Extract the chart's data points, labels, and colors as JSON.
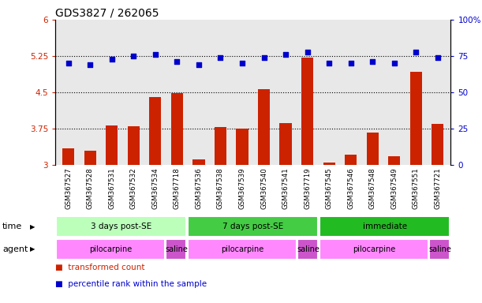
{
  "title": "GDS3827 / 262065",
  "samples": [
    "GSM367527",
    "GSM367528",
    "GSM367531",
    "GSM367532",
    "GSM367534",
    "GSM367718",
    "GSM367536",
    "GSM367538",
    "GSM367539",
    "GSM367540",
    "GSM367541",
    "GSM367719",
    "GSM367545",
    "GSM367546",
    "GSM367548",
    "GSM367549",
    "GSM367551",
    "GSM367721"
  ],
  "bar_values": [
    3.35,
    3.3,
    3.82,
    3.8,
    4.4,
    4.48,
    3.12,
    3.78,
    3.76,
    4.57,
    3.87,
    5.22,
    3.05,
    3.22,
    3.68,
    3.18,
    4.92,
    3.85
  ],
  "dot_values": [
    70,
    69,
    73,
    75,
    76,
    71,
    69,
    74,
    70,
    74,
    76,
    78,
    70,
    70,
    71,
    70,
    78,
    74
  ],
  "ylim_left": [
    3.0,
    6.0
  ],
  "ylim_right": [
    0,
    100
  ],
  "yticks_left": [
    3.0,
    3.75,
    4.5,
    5.25,
    6.0
  ],
  "ytick_labels_left": [
    "3",
    "3.75",
    "4.5",
    "5.25",
    "6"
  ],
  "yticks_right": [
    0,
    25,
    50,
    75,
    100
  ],
  "ytick_labels_right": [
    "0",
    "25",
    "50",
    "75",
    "100%"
  ],
  "hlines": [
    3.75,
    4.5,
    5.25
  ],
  "bar_color": "#cc2200",
  "dot_color": "#0000cc",
  "bg_color": "#ffffff",
  "ax_bg_color": "#e8e8e8",
  "time_groups": [
    {
      "label": "3 days post-SE",
      "start": 0,
      "end": 5,
      "color": "#bbffbb"
    },
    {
      "label": "7 days post-SE",
      "start": 6,
      "end": 11,
      "color": "#44cc44"
    },
    {
      "label": "immediate",
      "start": 12,
      "end": 17,
      "color": "#22bb22"
    }
  ],
  "agent_groups": [
    {
      "label": "pilocarpine",
      "start": 0,
      "end": 4,
      "color": "#ff88ff"
    },
    {
      "label": "saline",
      "start": 5,
      "end": 5,
      "color": "#cc55cc"
    },
    {
      "label": "pilocarpine",
      "start": 6,
      "end": 10,
      "color": "#ff88ff"
    },
    {
      "label": "saline",
      "start": 11,
      "end": 11,
      "color": "#cc55cc"
    },
    {
      "label": "pilocarpine",
      "start": 12,
      "end": 16,
      "color": "#ff88ff"
    },
    {
      "label": "saline",
      "start": 17,
      "end": 17,
      "color": "#cc55cc"
    }
  ],
  "legend_items": [
    {
      "label": "transformed count",
      "color": "#cc2200"
    },
    {
      "label": "percentile rank within the sample",
      "color": "#0000cc"
    }
  ],
  "title_fontsize": 10,
  "tick_fontsize": 7.5,
  "sample_fontsize": 6.2
}
